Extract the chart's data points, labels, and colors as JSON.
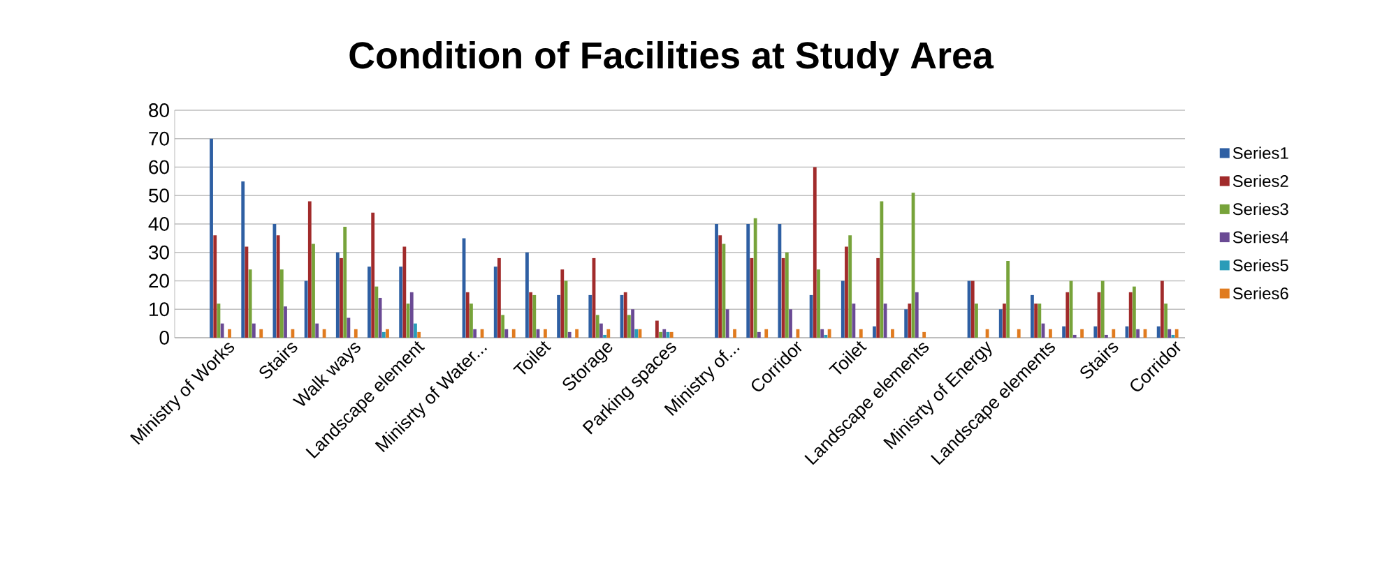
{
  "chart_data": {
    "type": "bar",
    "title": "Condition of Facilities at Study Area",
    "categories": [
      "Ministry of Works",
      null,
      "Stairs",
      null,
      "Walk ways",
      null,
      "Landscape element",
      null,
      "Minisrty of Water...",
      null,
      "Toilet",
      null,
      "Storage",
      null,
      "Parking spaces",
      null,
      "Ministry of...",
      null,
      "Corridor",
      null,
      "Toilet",
      null,
      "Landscape elements",
      null,
      "Minisrty of Energy",
      null,
      "Landscape elements",
      null,
      "Stairs",
      null,
      "Corridor"
    ],
    "series": [
      {
        "name": "Series1",
        "color": "#2e5fa3",
        "values": [
          70,
          55,
          40,
          20,
          30,
          25,
          25,
          null,
          35,
          25,
          30,
          15,
          15,
          15,
          0,
          null,
          40,
          40,
          40,
          15,
          20,
          4,
          10,
          null,
          20,
          10,
          15,
          4,
          4,
          4,
          4
        ]
      },
      {
        "name": "Series2",
        "color": "#a12b2b",
        "values": [
          36,
          32,
          36,
          48,
          28,
          44,
          32,
          null,
          16,
          28,
          16,
          24,
          28,
          16,
          6,
          null,
          36,
          28,
          28,
          60,
          32,
          28,
          12,
          null,
          20,
          12,
          12,
          16,
          16,
          16,
          20
        ]
      },
      {
        "name": "Series3",
        "color": "#77a33a",
        "values": [
          12,
          24,
          24,
          33,
          39,
          18,
          12,
          null,
          12,
          8,
          15,
          20,
          8,
          8,
          2,
          null,
          33,
          42,
          30,
          24,
          36,
          48,
          51,
          null,
          12,
          27,
          12,
          20,
          20,
          18,
          12
        ]
      },
      {
        "name": "Series4",
        "color": "#6a4a94",
        "values": [
          5,
          5,
          11,
          5,
          7,
          14,
          16,
          null,
          3,
          3,
          3,
          2,
          5,
          10,
          3,
          null,
          10,
          2,
          10,
          3,
          12,
          12,
          16,
          null,
          0,
          0,
          5,
          1,
          1,
          3,
          3
        ]
      },
      {
        "name": "Series5",
        "color": "#2a9cb8",
        "values": [
          0,
          0,
          0,
          0,
          0,
          2,
          5,
          null,
          0,
          0,
          0,
          0,
          1,
          3,
          2,
          null,
          0,
          0,
          0,
          1,
          0,
          0,
          0,
          null,
          0,
          0,
          0,
          0,
          0,
          0,
          1
        ]
      },
      {
        "name": "Series6",
        "color": "#e07b1f",
        "values": [
          3,
          3,
          3,
          3,
          3,
          3,
          2,
          null,
          3,
          3,
          3,
          3,
          3,
          3,
          2,
          null,
          3,
          3,
          3,
          3,
          3,
          3,
          2,
          null,
          3,
          3,
          3,
          3,
          3,
          3,
          3
        ]
      }
    ],
    "ylim": [
      0,
      80
    ],
    "yticks": [
      0,
      10,
      20,
      30,
      40,
      50,
      60,
      70,
      80
    ],
    "grid": "y",
    "legend": "right"
  }
}
